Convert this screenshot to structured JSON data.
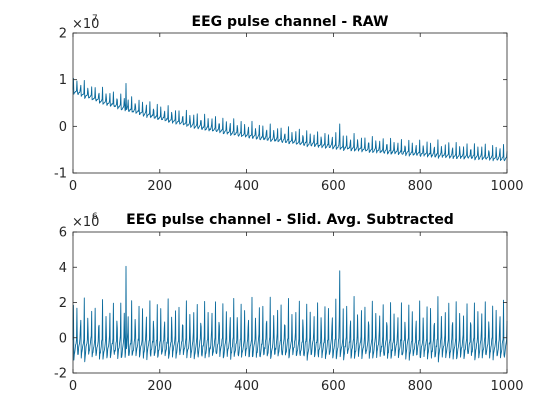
{
  "figure": {
    "background": "#ffffff",
    "line_color": "#0a6a9c"
  },
  "chart_data": [
    {
      "type": "line",
      "title": "EEG pulse channel - RAW",
      "xlabel": "",
      "ylabel": "",
      "exponent_base": "×10",
      "exponent_power": "7",
      "xlim": [
        0,
        1000
      ],
      "ylim": [
        -1,
        2
      ],
      "xticks": [
        0,
        200,
        400,
        600,
        800,
        1000
      ],
      "yticks": [
        -1,
        0,
        1,
        2
      ],
      "xtick_labels": [
        "0",
        "200",
        "400",
        "600",
        "800",
        "1000"
      ],
      "ytick_labels": [
        "-1",
        "0",
        "1",
        "2"
      ],
      "series": [
        {
          "signal": "periodic pulse train on a decaying baseline",
          "x_start": 0,
          "x_end": 1000,
          "num_samples": 1000,
          "pulse_period": 8.4,
          "baseline_start": 0.8,
          "baseline_end": -0.65,
          "pulse_peak_height": 0.28,
          "pulse_trough_depth": 0.1,
          "outliers": [
            {
              "x": 122,
              "y": 0.92
            },
            {
              "x": 615,
              "y": 0.05
            }
          ]
        }
      ]
    },
    {
      "type": "line",
      "title": "EEG pulse channel - Slid. Avg. Subtracted",
      "xlabel": "",
      "ylabel": "",
      "exponent_base": "×10",
      "exponent_power": "6",
      "xlim": [
        0,
        1000
      ],
      "ylim": [
        -2,
        6
      ],
      "xticks": [
        0,
        200,
        400,
        600,
        800,
        1000
      ],
      "yticks": [
        -2,
        0,
        2,
        4,
        6
      ],
      "xtick_labels": [
        "0",
        "200",
        "400",
        "600",
        "800",
        "1000"
      ],
      "ytick_labels": [
        "-2",
        "0",
        "2",
        "4",
        "6"
      ],
      "series": [
        {
          "signal": "periodic pulse train on a flat baseline",
          "x_start": 0,
          "x_end": 1000,
          "num_samples": 1000,
          "pulse_period": 8.4,
          "baseline_start": 0,
          "baseline_end": 0,
          "pulse_peak_height": 2.3,
          "pulse_trough_depth": 1.3,
          "outliers": [
            {
              "x": 122,
              "y": 4.05
            },
            {
              "x": 615,
              "y": 3.8
            }
          ]
        }
      ]
    }
  ]
}
